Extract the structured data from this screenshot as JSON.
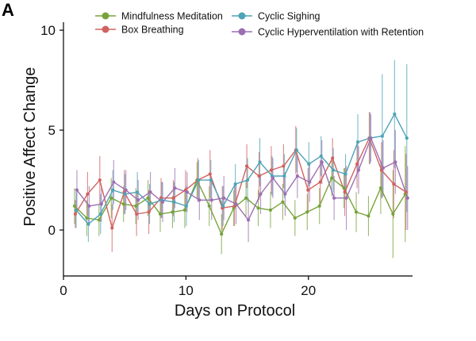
{
  "panel_label": "A",
  "chart_data": {
    "type": "line",
    "title": "",
    "xlabel": "Days on Protocol",
    "ylabel": "Positive Affect Change",
    "xlim": [
      0,
      28.5
    ],
    "ylim": [
      -2.3,
      10.4
    ],
    "xticks": [
      0,
      10,
      20
    ],
    "yticks": [
      0,
      5,
      10
    ],
    "grid": false,
    "legend_position": "top",
    "x": [
      1,
      2,
      3,
      4,
      5,
      6,
      7,
      8,
      9,
      10,
      11,
      12,
      13,
      14,
      15,
      16,
      17,
      18,
      19,
      20,
      21,
      22,
      23,
      24,
      25,
      26,
      27,
      28
    ],
    "series": [
      {
        "name": "Mindfulness Meditation",
        "color": "#77a33b",
        "values": [
          1.2,
          0.6,
          0.5,
          1.6,
          1.3,
          1.2,
          1.6,
          0.8,
          0.9,
          1.0,
          2.5,
          1.2,
          -0.2,
          1.1,
          1.6,
          1.1,
          1.0,
          1.4,
          0.6,
          0.9,
          1.2,
          2.6,
          2.1,
          0.9,
          0.7,
          2.1,
          0.8,
          1.8
        ],
        "err": [
          0.9,
          0.9,
          0.8,
          1.0,
          0.9,
          0.9,
          0.9,
          0.9,
          0.8,
          0.9,
          0.9,
          1.0,
          1.0,
          0.9,
          0.9,
          0.9,
          0.9,
          0.9,
          0.9,
          0.9,
          0.9,
          0.9,
          1.0,
          1.0,
          1.0,
          1.3,
          2.2,
          2.4
        ]
      },
      {
        "name": "Box Breathing",
        "color": "#d0625f",
        "values": [
          0.8,
          1.8,
          2.5,
          0.1,
          1.9,
          0.8,
          0.9,
          1.6,
          1.6,
          2.0,
          2.5,
          2.8,
          1.1,
          1.2,
          3.2,
          2.7,
          3.0,
          3.2,
          4.0,
          2.0,
          2.4,
          3.6,
          1.9,
          3.3,
          4.6,
          3.0,
          2.3,
          1.9
        ],
        "err": [
          0.7,
          1.1,
          1.2,
          1.2,
          1.1,
          1.1,
          1.1,
          1.0,
          0.9,
          1.0,
          1.1,
          1.2,
          1.1,
          1.0,
          1.1,
          1.2,
          1.2,
          1.1,
          1.2,
          1.1,
          1.1,
          1.0,
          1.2,
          1.2,
          1.3,
          1.4,
          1.7,
          1.9
        ]
      },
      {
        "name": "Cyclic Sighing",
        "color": "#4fa3b6",
        "values": [
          1.0,
          0.3,
          0.8,
          2.0,
          1.8,
          1.9,
          1.3,
          1.5,
          1.4,
          1.2,
          2.5,
          2.5,
          1.2,
          2.3,
          2.5,
          3.4,
          2.7,
          2.7,
          4.0,
          3.3,
          3.7,
          3.0,
          2.8,
          4.4,
          4.6,
          4.7,
          5.8,
          4.6
        ],
        "err": [
          0.9,
          0.9,
          1.0,
          1.0,
          1.0,
          1.0,
          1.0,
          0.9,
          1.0,
          1.0,
          1.0,
          1.0,
          1.0,
          1.0,
          1.1,
          1.2,
          1.0,
          1.1,
          1.1,
          1.1,
          1.0,
          1.1,
          1.0,
          1.4,
          1.3,
          3.1,
          2.7,
          3.7
        ]
      },
      {
        "name": "Cyclic Hyperventilation with Retention",
        "color": "#9c6fb3",
        "values": [
          2.0,
          1.2,
          1.3,
          2.4,
          2.0,
          1.5,
          1.9,
          1.4,
          2.1,
          1.9,
          1.5,
          1.5,
          1.6,
          1.3,
          0.5,
          1.8,
          2.6,
          1.8,
          2.7,
          2.4,
          3.4,
          1.6,
          1.6,
          3.0,
          4.6,
          3.1,
          3.4,
          1.6
        ],
        "err": [
          1.0,
          1.0,
          0.9,
          1.1,
          1.0,
          1.0,
          1.0,
          1.0,
          1.0,
          1.0,
          1.0,
          1.0,
          1.1,
          1.0,
          1.1,
          1.0,
          1.0,
          1.1,
          1.1,
          1.0,
          1.1,
          1.1,
          1.6,
          1.2,
          1.2,
          1.4,
          1.6,
          1.6
        ]
      }
    ]
  }
}
